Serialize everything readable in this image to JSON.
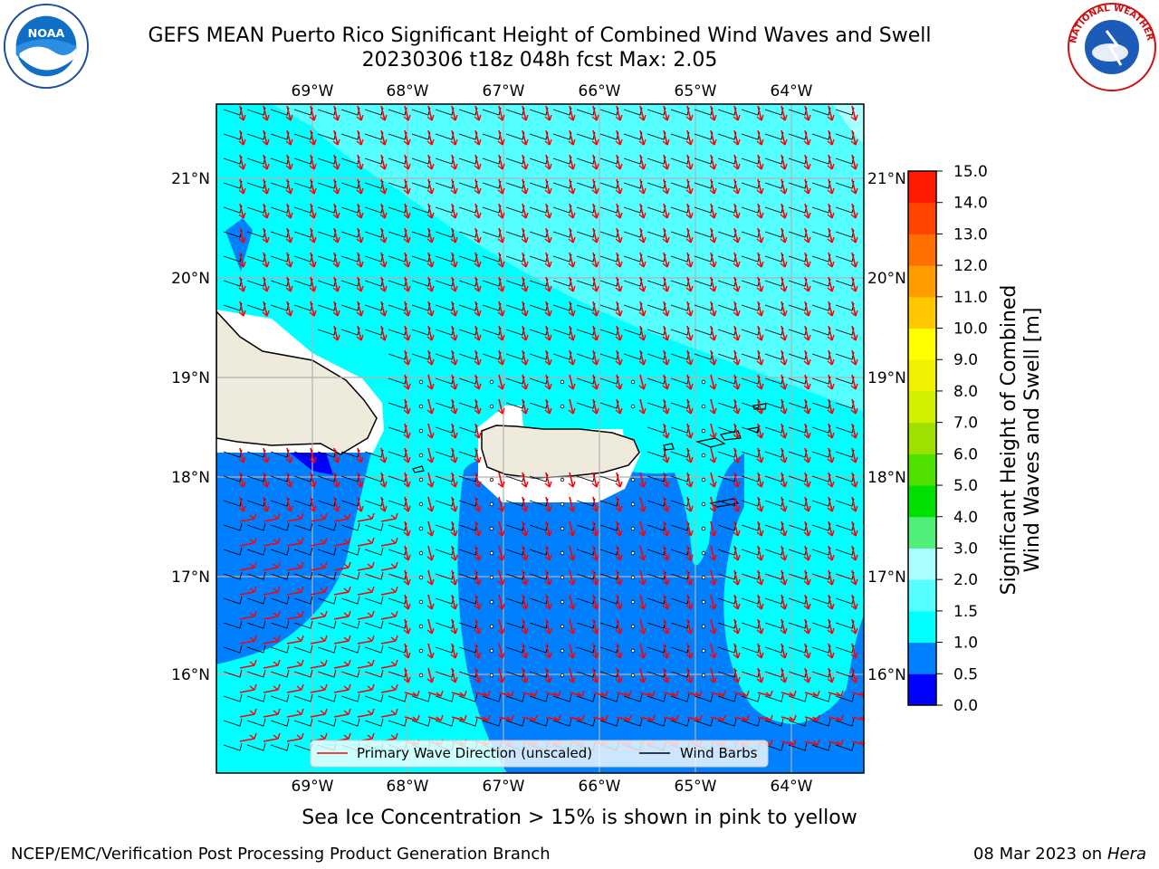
{
  "title_line1": "GEFS MEAN Puerto Rico Significant Height of Combined Wind Waves and Swell",
  "title_line2": "20230306 t18z 048h fcst   Max: 2.05",
  "lon_ticks": [
    "69°W",
    "68°W",
    "67°W",
    "66°W",
    "65°W",
    "64°W"
  ],
  "lat_ticks": [
    "21°N",
    "20°N",
    "19°N",
    "18°N",
    "17°N",
    "16°N"
  ],
  "legend": {
    "wave_direction": "Primary Wave Direction (unscaled)",
    "wind_barbs": "Wind Barbs"
  },
  "colorbar": {
    "label_line1": "Significant Height of Combined",
    "label_line2": "Wind Waves and Swell [m]",
    "ticks": [
      "0.0",
      "0.5",
      "1.0",
      "1.5",
      "2.0",
      "3.0",
      "4.0",
      "5.0",
      "6.0",
      "7.0",
      "8.0",
      "9.0",
      "10.0",
      "11.0",
      "12.0",
      "13.0",
      "14.0",
      "15.0"
    ],
    "colors": [
      "#0000ff",
      "#0080ff",
      "#00ffff",
      "#55ffff",
      "#aaffff",
      "#4fef7a",
      "#00e000",
      "#50e000",
      "#a0e000",
      "#d0f000",
      "#f0f000",
      "#ffff00",
      "#ffc800",
      "#ff9c00",
      "#ff7000",
      "#ff4400",
      "#ff1a00"
    ]
  },
  "footer_note": "Sea Ice Concentration > 15% is shown in pink to yellow",
  "credit": "NCEP/EMC/Verification Post Processing Product Generation Branch",
  "date_text": "08 Mar 2023 on",
  "date_machine": "Hera",
  "logos": {
    "left": "NOAA",
    "right": "NATIONAL WEATHER SERVICE"
  },
  "arrow_color": "#ff0000",
  "land_color": "#efebdc"
}
